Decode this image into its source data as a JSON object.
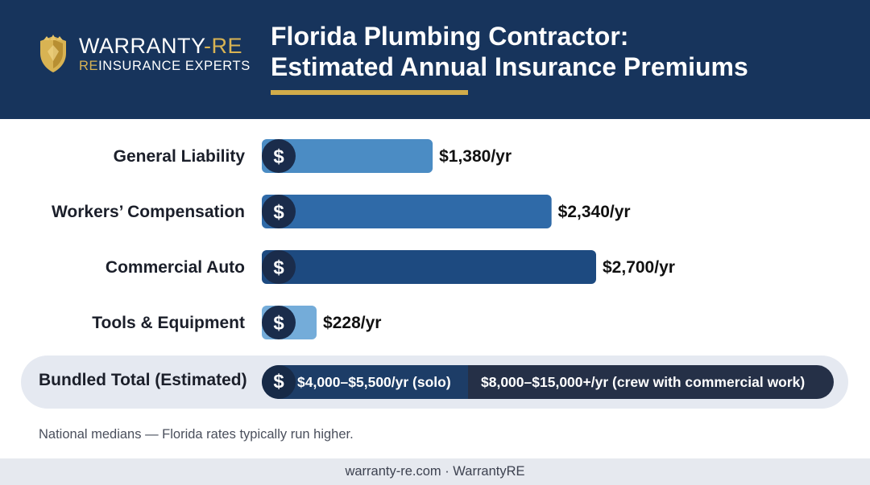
{
  "brand": {
    "name_main": "WARRANTY",
    "name_accent": "-RE",
    "tagline_accent": "RE",
    "tagline_rest": "INSURANCE EXPERTS",
    "logo_icon": "shield-icon",
    "logo_color": "#d8b353"
  },
  "header": {
    "title_line1": "Florida Plumbing Contractor:",
    "title_line2": "Estimated Annual Insurance Premiums",
    "background": "#17345c",
    "accent": "#d1ac4a"
  },
  "chart_data": {
    "type": "bar",
    "orientation": "horizontal",
    "title": "Florida Plumbing Contractor: Estimated Annual Insurance Premiums",
    "categories": [
      "General Liability",
      "Workers’ Compensation",
      "Commercial Auto",
      "Tools & Equipment"
    ],
    "values": [
      1380,
      2340,
      2700,
      228
    ],
    "value_labels": [
      "$1,380/yr",
      "$2,340/yr",
      "$2,700/yr",
      "$228/yr"
    ],
    "bar_colors": [
      "#4b8cc4",
      "#2f6aa8",
      "#1d4a80",
      "#74acd9"
    ],
    "coin_icon": "dollar-coin-icon",
    "coin_glyph": "$",
    "coin_color": "#1a2c4b",
    "xlim": [
      0,
      2700
    ],
    "grid": false,
    "legend": "none"
  },
  "total": {
    "label": "Bundled Total (Estimated)",
    "solo": "$4,000–$5,500/yr (solo)",
    "crew": "$8,000–$15,000+/yr (crew with commercial work)",
    "coin_glyph": "$"
  },
  "note": "National medians — Florida rates typically run higher.",
  "footer": "warranty-re.com · WarrantyRE"
}
